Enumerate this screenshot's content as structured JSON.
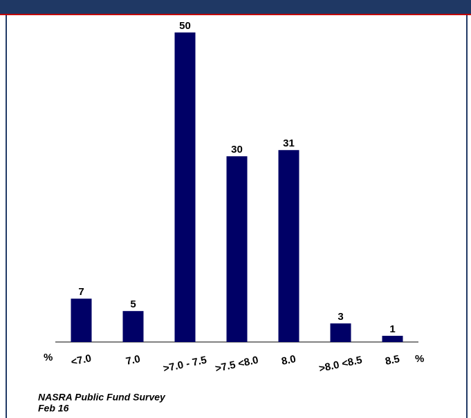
{
  "chart_data": {
    "type": "bar",
    "categories": [
      "<7.0",
      "7.0",
      ">7.0 - 7.5",
      ">7.5 <8.0",
      "8.0",
      ">8.0 <8.5",
      "8.5"
    ],
    "values": [
      7,
      5,
      50,
      30,
      31,
      3,
      1
    ],
    "color": "#000066",
    "ylim": [
      0,
      50
    ],
    "x_unit": "%",
    "source": "NASRA Public Fund Survey",
    "date": "Feb 16"
  }
}
